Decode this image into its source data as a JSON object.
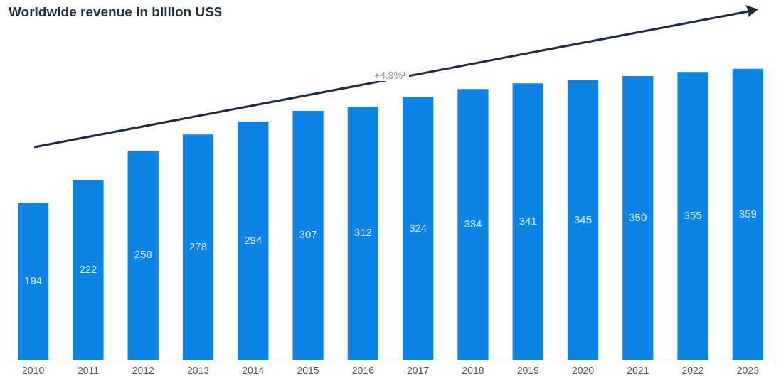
{
  "chart_data": {
    "type": "bar",
    "title": "Worldwide revenue in billion US$",
    "categories": [
      "2010",
      "2011",
      "2012",
      "2013",
      "2014",
      "2015",
      "2016",
      "2017",
      "2018",
      "2019",
      "2020",
      "2021",
      "2022",
      "2023"
    ],
    "values": [
      194,
      222,
      258,
      278,
      294,
      307,
      312,
      324,
      334,
      341,
      345,
      350,
      355,
      359
    ],
    "color": "#0b84e6",
    "tick_labels": "x",
    "grid": false,
    "legend": false,
    "data_labels": true,
    "annotations": [
      "+4.9%¹"
    ]
  }
}
